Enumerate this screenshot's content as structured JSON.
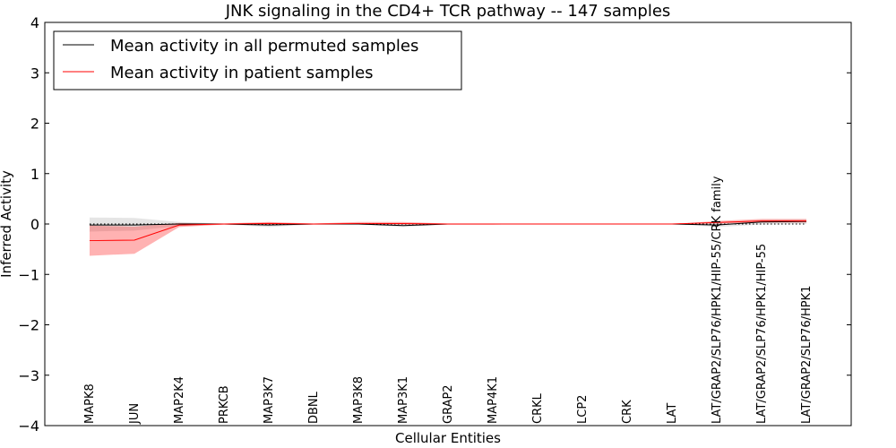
{
  "chart_data": {
    "type": "line",
    "title": "JNK signaling in the CD4+ TCR pathway -- 147 samples",
    "xlabel": "Cellular Entities",
    "ylabel": "Inferred Activity",
    "ylim": [
      -4,
      4
    ],
    "yticks": [
      -4,
      -3,
      -2,
      -1,
      0,
      1,
      2,
      3,
      4
    ],
    "ytick_labels": [
      "−4",
      "−3",
      "−2",
      "−1",
      "0",
      "1",
      "2",
      "3",
      "4"
    ],
    "grid": false,
    "legend_position": "top-left",
    "reference_line": 0,
    "categories": [
      "MAPK8",
      "JUN",
      "MAP2K4",
      "PRKCB",
      "MAP3K7",
      "DBNL",
      "MAP3K8",
      "MAP3K1",
      "GRAP2",
      "MAP4K1",
      "CRKL",
      "LCP2",
      "CRK",
      "LAT",
      "LAT/GRAP2/SLP76/HPK1/HIP-55/CRK family",
      "LAT/GRAP2/SLP76/HPK1/HIP-55",
      "LAT/GRAP2/SLP76/HPK1"
    ],
    "series": [
      {
        "name": "Mean activity in all permuted samples",
        "color": "#000000",
        "band_color": "#999999",
        "values": [
          -0.02,
          -0.02,
          0.0,
          0.0,
          -0.02,
          0.0,
          0.0,
          -0.03,
          0.0,
          0.0,
          0.0,
          0.0,
          0.0,
          0.0,
          -0.02,
          0.04,
          0.05
        ],
        "lower": [
          -0.15,
          -0.13,
          -0.04,
          -0.01,
          -0.06,
          -0.01,
          -0.01,
          -0.06,
          -0.01,
          -0.01,
          0.0,
          0.0,
          0.0,
          0.0,
          -0.06,
          -0.01,
          0.0
        ],
        "upper": [
          0.13,
          0.12,
          0.04,
          0.01,
          0.02,
          0.01,
          0.01,
          0.01,
          0.01,
          0.01,
          0.0,
          0.0,
          0.0,
          0.0,
          0.02,
          0.08,
          0.09
        ]
      },
      {
        "name": "Mean activity in patient samples",
        "color": "#ff0000",
        "band_color": "#ff0000",
        "values": [
          -0.33,
          -0.32,
          -0.02,
          0.0,
          0.01,
          0.0,
          0.01,
          0.01,
          0.0,
          0.0,
          0.0,
          0.0,
          0.0,
          0.0,
          0.03,
          0.06,
          0.06
        ],
        "lower": [
          -0.63,
          -0.59,
          -0.06,
          -0.01,
          -0.01,
          -0.01,
          -0.01,
          -0.01,
          -0.01,
          -0.01,
          0.0,
          0.0,
          0.0,
          0.0,
          0.01,
          0.03,
          0.03
        ],
        "upper": [
          -0.03,
          -0.05,
          0.02,
          0.01,
          0.04,
          0.01,
          0.04,
          0.04,
          0.01,
          0.01,
          0.0,
          0.0,
          0.0,
          0.0,
          0.06,
          0.1,
          0.1
        ]
      }
    ]
  }
}
